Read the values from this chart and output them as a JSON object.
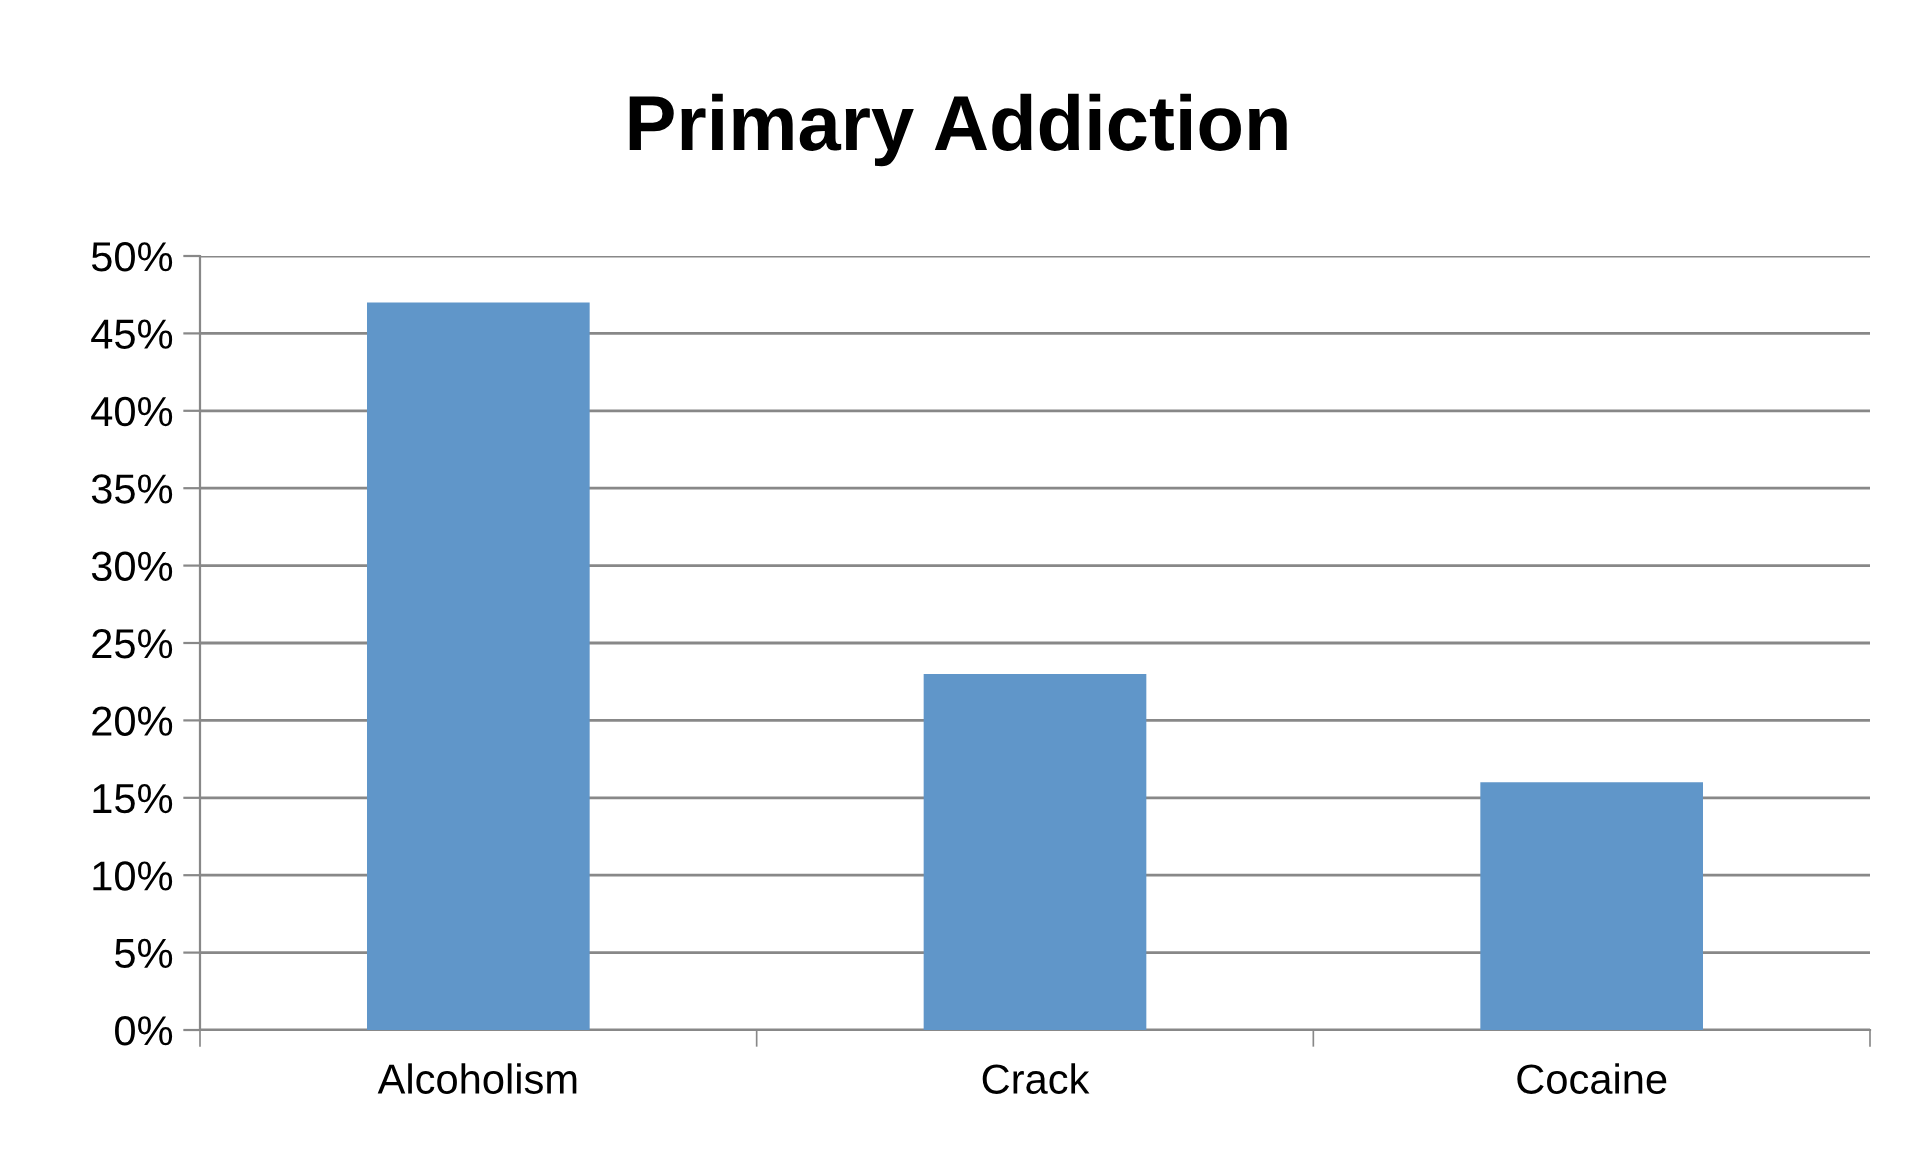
{
  "chart_data": {
    "type": "bar",
    "title": "Primary Addiction",
    "categories": [
      "Alcoholism",
      "Crack",
      "Cocaine"
    ],
    "values": [
      47,
      23,
      16
    ],
    "color": "#6096c9",
    "ylim": [
      0,
      50
    ],
    "yticks": [
      {
        "value": 0,
        "label": "0%"
      },
      {
        "value": 5,
        "label": "5%"
      },
      {
        "value": 10,
        "label": "10%"
      },
      {
        "value": 15,
        "label": "15%"
      },
      {
        "value": 20,
        "label": "20%"
      },
      {
        "value": 25,
        "label": "25%"
      },
      {
        "value": 30,
        "label": "30%"
      },
      {
        "value": 35,
        "label": "35%"
      },
      {
        "value": 40,
        "label": "40%"
      },
      {
        "value": 45,
        "label": "45%"
      },
      {
        "value": 50,
        "label": "50%"
      }
    ],
    "grid": "y",
    "legend": false
  }
}
